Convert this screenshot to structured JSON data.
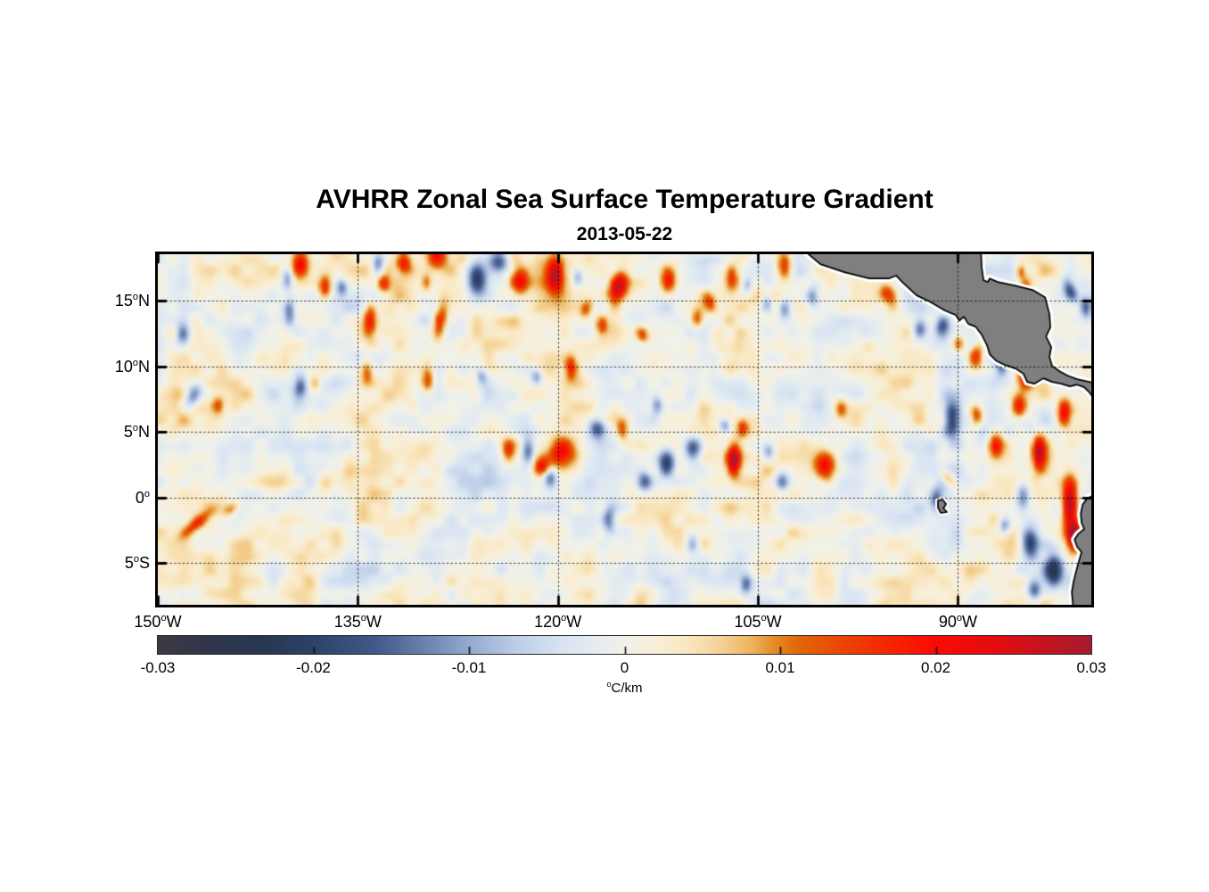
{
  "title": "AVHRR Zonal Sea Surface Temperature Gradient",
  "subtitle": "2013-05-22",
  "axes": {
    "lat_ticks": [
      {
        "value": 15,
        "num": "15",
        "deg": "o",
        "hem": "N"
      },
      {
        "value": 10,
        "num": "10",
        "deg": "o",
        "hem": "N"
      },
      {
        "value": 5,
        "num": "5",
        "deg": "o",
        "hem": "N"
      },
      {
        "value": 0,
        "num": "0",
        "deg": "o",
        "hem": ""
      },
      {
        "value": -5,
        "num": "5",
        "deg": "o",
        "hem": "S"
      }
    ],
    "lon_ticks": [
      {
        "value": -150,
        "num": "150",
        "deg": "o",
        "hem": "W"
      },
      {
        "value": -135,
        "num": "135",
        "deg": "o",
        "hem": "W"
      },
      {
        "value": -120,
        "num": "120",
        "deg": "o",
        "hem": "W"
      },
      {
        "value": -105,
        "num": "105",
        "deg": "o",
        "hem": "W"
      },
      {
        "value": -90,
        "num": "90",
        "deg": "o",
        "hem": "W"
      }
    ]
  },
  "colorbar": {
    "ticks": [
      {
        "value": -0.03,
        "label": "-0.03"
      },
      {
        "value": -0.02,
        "label": "-0.02"
      },
      {
        "value": -0.01,
        "label": "-0.01"
      },
      {
        "value": 0,
        "label": "0"
      },
      {
        "value": 0.01,
        "label": "0.01"
      },
      {
        "value": 0.02,
        "label": "0.02"
      },
      {
        "value": 0.03,
        "label": "0.03"
      }
    ],
    "unit_sup": "o",
    "unit_text": "C/km"
  },
  "chart_data": {
    "type": "heatmap",
    "title": "AVHRR Zonal Sea Surface Temperature Gradient",
    "subtitle": "2013-05-22",
    "units": "degC/km",
    "range": [
      -0.03,
      0.03
    ],
    "extent": {
      "lon_min": -150,
      "lon_max": -80,
      "lat_min": -8.2,
      "lat_max": 18.55
    },
    "grid": {
      "lon": [
        -135,
        -120,
        -105,
        -90
      ],
      "lat": [
        15,
        10,
        5,
        0,
        -5
      ],
      "style": "dotted"
    },
    "land_color": "#7f7f7f",
    "coast_color": "#000000",
    "coast_halo": "#ffffff",
    "colormap": [
      [
        -0.03,
        "#3b3b3f"
      ],
      [
        -0.027,
        "#30354b"
      ],
      [
        -0.023,
        "#273752"
      ],
      [
        -0.02,
        "#2b4369"
      ],
      [
        -0.016,
        "#42598a"
      ],
      [
        -0.013,
        "#6980ad"
      ],
      [
        -0.01,
        "#93a9cf"
      ],
      [
        -0.007,
        "#bccde7"
      ],
      [
        -0.004,
        "#d9e4f2"
      ],
      [
        -0.002,
        "#e4ecf1"
      ],
      [
        0.0,
        "#f0f1e9"
      ],
      [
        0.002,
        "#f8efd9"
      ],
      [
        0.004,
        "#f9e7c0"
      ],
      [
        0.006,
        "#f5d49a"
      ],
      [
        0.008,
        "#eeb763"
      ],
      [
        0.0095,
        "#e4902a"
      ],
      [
        0.011,
        "#e06a08"
      ],
      [
        0.014,
        "#ea4502"
      ],
      [
        0.017,
        "#f62500"
      ],
      [
        0.02,
        "#fb0b03"
      ],
      [
        0.024,
        "#e20d10"
      ],
      [
        0.027,
        "#c41420"
      ],
      [
        0.03,
        "#a61b2d"
      ]
    ],
    "noise": {
      "seed": 1337,
      "bias": 0.0008,
      "octaves": [
        [
          2.3,
          0.0048
        ],
        [
          0.95,
          0.0032
        ],
        [
          6.0,
          0.002
        ]
      ]
    },
    "features": [
      [
        -139.3,
        17.86,
        0.02,
        0.45,
        0.75,
        0
      ],
      [
        -137.43,
        16.02,
        0.016,
        0.35,
        0.6,
        0
      ],
      [
        -133.08,
        16.29,
        0.013,
        0.3,
        0.45,
        0
      ],
      [
        -131.55,
        17.86,
        0.016,
        0.35,
        0.55,
        0
      ],
      [
        -129.87,
        16.36,
        0.013,
        0.3,
        0.5,
        0
      ],
      [
        -129.07,
        18.33,
        0.02,
        0.5,
        0.6,
        0
      ],
      [
        -122.85,
        16.5,
        0.018,
        0.45,
        0.75,
        0
      ],
      [
        -120.2,
        16.9,
        0.024,
        0.42,
        0.95,
        0
      ],
      [
        -115.5,
        16.0,
        0.028,
        0.45,
        0.85,
        15
      ],
      [
        -111.69,
        16.5,
        0.017,
        0.4,
        0.7,
        0
      ],
      [
        -107.0,
        16.8,
        0.016,
        0.35,
        0.75,
        0
      ],
      [
        -103.0,
        17.65,
        0.021,
        0.45,
        0.85,
        0
      ],
      [
        -134.09,
        13.57,
        0.017,
        0.35,
        1.0,
        0
      ],
      [
        -128.8,
        13.64,
        0.015,
        0.33,
        1.1,
        8
      ],
      [
        -129.74,
        8.88,
        0.013,
        0.33,
        0.8,
        0
      ],
      [
        -134.29,
        9.63,
        0.013,
        0.33,
        0.7,
        0
      ],
      [
        -119.71,
        3.44,
        0.023,
        0.75,
        0.85,
        0
      ],
      [
        -121.18,
        2.35,
        0.017,
        0.45,
        0.5,
        30
      ],
      [
        -106.81,
        2.83,
        0.029,
        0.35,
        0.85,
        0
      ],
      [
        -106.14,
        5.34,
        0.015,
        0.3,
        0.5,
        0
      ],
      [
        -99.99,
        2.35,
        0.024,
        0.6,
        0.8,
        0
      ],
      [
        -98.78,
        6.77,
        0.014,
        0.35,
        0.55,
        0
      ],
      [
        -90.76,
        1.46,
        0.014,
        0.3,
        0.6,
        -35
      ],
      [
        -88.62,
        6.22,
        0.017,
        0.35,
        0.6,
        0
      ],
      [
        -87.15,
        3.91,
        0.019,
        0.4,
        0.65,
        0
      ],
      [
        -85.41,
        6.9,
        0.019,
        0.4,
        0.65,
        0
      ],
      [
        -83.94,
        3.44,
        0.025,
        0.32,
        0.95,
        0
      ],
      [
        -81.6,
        -0.51,
        0.03,
        0.4,
        1.5,
        0
      ],
      [
        -81.26,
        -2.96,
        0.028,
        0.32,
        0.75,
        0
      ],
      [
        -82.07,
        6.5,
        0.021,
        0.35,
        0.75,
        0
      ],
      [
        -84.94,
        9.01,
        0.017,
        0.4,
        0.55,
        0
      ],
      [
        -88.62,
        10.71,
        0.019,
        0.38,
        0.65,
        0
      ],
      [
        -89.96,
        11.73,
        0.015,
        0.33,
        0.5,
        0
      ],
      [
        -95.18,
        15.48,
        0.014,
        0.4,
        0.55,
        -30
      ],
      [
        -123.72,
        3.57,
        0.013,
        0.3,
        0.65,
        0
      ],
      [
        -115.16,
        5.14,
        0.013,
        0.3,
        0.55,
        0
      ],
      [
        -147.12,
        -2.07,
        0.014,
        0.3,
        0.9,
        50
      ],
      [
        -144.45,
        -0.85,
        0.01,
        0.3,
        0.5,
        45
      ],
      [
        -145.45,
        6.97,
        0.013,
        0.33,
        0.5,
        0
      ],
      [
        -138.23,
        8.67,
        0.011,
        0.3,
        0.45,
        0
      ],
      [
        -84.94,
        16.02,
        0.013,
        0.3,
        0.55,
        0
      ],
      [
        -108.55,
        14.8,
        0.012,
        0.3,
        0.55,
        -20
      ],
      [
        -117.84,
        14.4,
        0.012,
        0.3,
        0.5,
        20
      ],
      [
        -116.7,
        13.2,
        0.013,
        0.3,
        0.5,
        0
      ],
      [
        -113.69,
        12.4,
        0.013,
        0.32,
        0.5,
        -20
      ],
      [
        -109.55,
        13.6,
        0.012,
        0.3,
        0.5,
        0
      ],
      [
        -119.04,
        9.9,
        0.016,
        0.3,
        0.6,
        0
      ],
      [
        -85.3,
        17.2,
        0.012,
        0.25,
        0.4,
        0
      ],
      [
        -133.49,
        17.86,
        -0.018,
        0.35,
        0.65,
        0
      ],
      [
        -148.13,
        12.41,
        -0.015,
        0.4,
        0.75,
        0
      ],
      [
        -147.33,
        7.79,
        -0.019,
        0.45,
        0.8,
        25
      ],
      [
        -140.3,
        16.7,
        -0.013,
        0.3,
        0.65,
        0
      ],
      [
        -126.06,
        16.63,
        -0.021,
        0.5,
        0.85,
        0
      ],
      [
        -124.39,
        17.99,
        -0.019,
        0.5,
        0.65,
        0
      ],
      [
        -136.16,
        16.02,
        -0.011,
        0.28,
        0.45,
        0
      ],
      [
        -140.1,
        14.12,
        -0.011,
        0.28,
        0.85,
        0
      ],
      [
        -122.25,
        3.57,
        -0.017,
        0.38,
        0.75,
        0
      ],
      [
        -117.04,
        5.27,
        -0.019,
        0.5,
        0.6,
        0
      ],
      [
        -113.49,
        1.19,
        -0.015,
        0.4,
        0.55,
        0
      ],
      [
        -111.82,
        2.69,
        -0.021,
        0.5,
        0.75,
        0
      ],
      [
        -109.88,
        3.71,
        -0.021,
        0.5,
        0.75,
        0
      ],
      [
        -107.48,
        5.48,
        -0.013,
        0.28,
        0.4,
        0
      ],
      [
        -104.2,
        3.37,
        -0.013,
        0.33,
        0.5,
        0
      ],
      [
        -103.2,
        1.19,
        -0.015,
        0.38,
        0.6,
        0
      ],
      [
        -100.86,
        15.27,
        -0.013,
        0.33,
        0.55,
        0
      ],
      [
        -92.84,
        12.89,
        -0.015,
        0.38,
        0.6,
        0
      ],
      [
        -91.17,
        12.89,
        -0.015,
        0.38,
        0.6,
        0
      ],
      [
        -90.43,
        5.95,
        -0.023,
        0.45,
        1.0,
        0
      ],
      [
        -86.75,
        10.03,
        -0.017,
        0.38,
        0.6,
        0
      ],
      [
        -81.6,
        15.8,
        -0.016,
        0.35,
        0.7,
        -20
      ],
      [
        -80.4,
        14.5,
        -0.015,
        0.3,
        0.6,
        0
      ],
      [
        -85.14,
        0.17,
        -0.017,
        0.4,
        0.75,
        0
      ],
      [
        -86.48,
        -2.21,
        -0.015,
        0.33,
        0.5,
        0
      ],
      [
        -84.61,
        -3.44,
        -0.021,
        0.45,
        0.85,
        0
      ],
      [
        -82.8,
        -5.61,
        -0.024,
        0.5,
        0.95,
        0
      ],
      [
        -84.27,
        -7.11,
        -0.019,
        0.4,
        0.6,
        0
      ],
      [
        -91.63,
        -0.17,
        -0.013,
        0.33,
        0.65,
        0
      ],
      [
        -116.17,
        -1.73,
        -0.013,
        0.33,
        0.75,
        0
      ],
      [
        -109.88,
        -3.57,
        -0.011,
        0.33,
        0.55,
        0
      ],
      [
        -105.87,
        -6.63,
        -0.013,
        0.3,
        0.5,
        0
      ],
      [
        -120.58,
        1.53,
        -0.013,
        0.33,
        0.55,
        0
      ],
      [
        -125.73,
        9.22,
        -0.011,
        0.3,
        0.5,
        0
      ],
      [
        -139.3,
        8.54,
        -0.011,
        0.3,
        0.5,
        0
      ],
      [
        -118.5,
        16.8,
        -0.013,
        0.28,
        0.55,
        0
      ],
      [
        -105.8,
        16.2,
        -0.012,
        0.3,
        0.45,
        0
      ],
      [
        -104.33,
        14.9,
        -0.014,
        0.3,
        0.55,
        0
      ],
      [
        -103.0,
        14.4,
        -0.015,
        0.35,
        0.6,
        0
      ],
      [
        -121.59,
        9.2,
        -0.013,
        0.3,
        0.45,
        0
      ],
      [
        -112.56,
        7.0,
        -0.012,
        0.3,
        0.5,
        0
      ]
    ],
    "land": {
      "central_america": [
        [
          -101.66,
          18.95
        ],
        [
          -100.32,
          17.79
        ],
        [
          -98.52,
          17.18
        ],
        [
          -96.65,
          16.7
        ],
        [
          -95.18,
          16.7
        ],
        [
          -94.64,
          16.92
        ],
        [
          -94.11,
          16.36
        ],
        [
          -93.1,
          15.41
        ],
        [
          -92.1,
          14.93
        ],
        [
          -90.96,
          14.25
        ],
        [
          -90.16,
          13.91
        ],
        [
          -89.89,
          13.48
        ],
        [
          -89.56,
          13.78
        ],
        [
          -89.22,
          13.23
        ],
        [
          -88.69,
          13.03
        ],
        [
          -88.22,
          12.41
        ],
        [
          -87.82,
          11.6
        ],
        [
          -87.62,
          10.92
        ],
        [
          -87.15,
          10.44
        ],
        [
          -86.48,
          10.1
        ],
        [
          -85.68,
          9.83
        ],
        [
          -85.08,
          9.42
        ],
        [
          -84.81,
          8.81
        ],
        [
          -84.27,
          8.67
        ],
        [
          -83.6,
          9.08
        ],
        [
          -82.94,
          8.81
        ],
        [
          -82.27,
          8.67
        ],
        [
          -81.6,
          8.47
        ],
        [
          -81.06,
          8.6
        ],
        [
          -80.53,
          8.4
        ],
        [
          -80.13,
          7.99
        ],
        [
          -79.86,
          7.58
        ],
        [
          -79.55,
          6.9
        ],
        [
          -79.55,
          8.67
        ],
        [
          -81.06,
          9.01
        ],
        [
          -81.8,
          9.29
        ],
        [
          -82.4,
          9.63
        ],
        [
          -82.94,
          10.03
        ],
        [
          -83.14,
          10.71
        ],
        [
          -83.0,
          11.46
        ],
        [
          -83.4,
          12.28
        ],
        [
          -83.07,
          12.96
        ],
        [
          -83.14,
          13.98
        ],
        [
          -83.47,
          15.27
        ],
        [
          -84.41,
          15.82
        ],
        [
          -85.75,
          16.16
        ],
        [
          -87.02,
          16.43
        ],
        [
          -87.62,
          16.7
        ],
        [
          -87.75,
          16.43
        ],
        [
          -88.08,
          16.56
        ],
        [
          -88.22,
          17.52
        ],
        [
          -88.28,
          18.95
        ]
      ],
      "south_america": [
        [
          -79.55,
          0.31
        ],
        [
          -80.32,
          -0.1
        ],
        [
          -80.66,
          -0.58
        ],
        [
          -80.79,
          -1.26
        ],
        [
          -80.73,
          -1.94
        ],
        [
          -80.53,
          -2.41
        ],
        [
          -81.0,
          -2.82
        ],
        [
          -81.26,
          -3.23
        ],
        [
          -81.06,
          -3.78
        ],
        [
          -80.73,
          -4.18
        ],
        [
          -80.93,
          -4.86
        ],
        [
          -81.13,
          -5.61
        ],
        [
          -81.33,
          -6.43
        ],
        [
          -81.46,
          -7.24
        ],
        [
          -81.4,
          -7.92
        ],
        [
          -81.33,
          -8.6
        ],
        [
          -79.55,
          -8.6
        ]
      ],
      "galapagos": [
        [
          -91.5,
          -0.24
        ],
        [
          -91.16,
          -0.17
        ],
        [
          -90.89,
          -0.51
        ],
        [
          -91.09,
          -0.85
        ],
        [
          -90.82,
          -1.12
        ],
        [
          -91.29,
          -1.19
        ],
        [
          -91.5,
          -0.78
        ]
      ]
    }
  }
}
